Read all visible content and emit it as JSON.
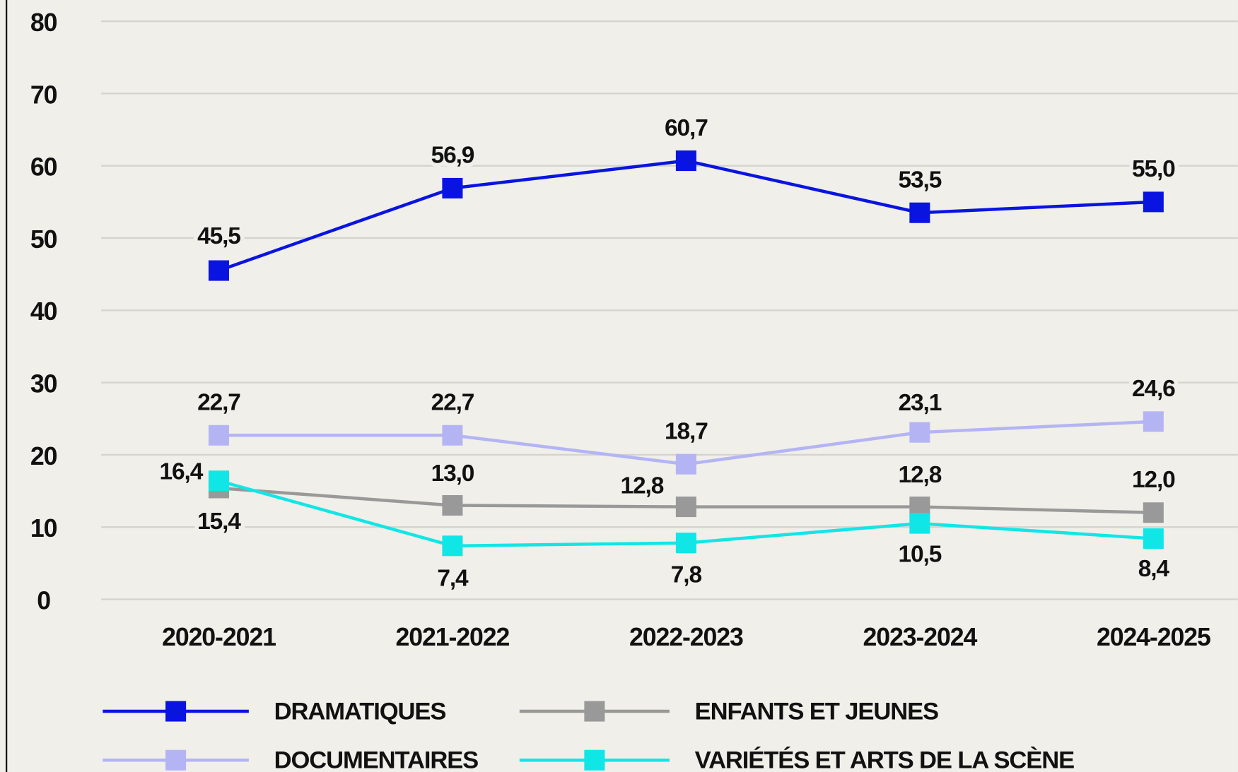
{
  "chart_data": {
    "type": "line",
    "categories": [
      "2020-2021",
      "2021-2022",
      "2022-2023",
      "2023-2024",
      "2024-2025"
    ],
    "series": [
      {
        "name": "DRAMATIQUES",
        "color": "#0a14e0",
        "values": [
          45.5,
          56.9,
          60.7,
          53.5,
          55.0
        ],
        "value_labels": [
          "45,5",
          "56,9",
          "60,7",
          "53,5",
          "55,0"
        ]
      },
      {
        "name": "ENFANTS ET JEUNES",
        "color": "#999999",
        "values": [
          15.4,
          13.0,
          12.8,
          12.8,
          12.0
        ],
        "value_labels": [
          "15,4",
          "13,0",
          "12,8",
          "12,8",
          "12,0"
        ]
      },
      {
        "name": "DOCUMENTAIRES",
        "color": "#b4b4f5",
        "values": [
          22.7,
          22.7,
          18.7,
          23.1,
          24.6
        ],
        "value_labels": [
          "22,7",
          "22,7",
          "18,7",
          "23,1",
          "24,6"
        ]
      },
      {
        "name": "VARIÉTÉS ET ARTS DE LA SCÈNE",
        "color": "#11e6e6",
        "values": [
          16.4,
          7.4,
          7.8,
          10.5,
          8.4
        ],
        "value_labels": [
          "16,4",
          "7,4",
          "7,8",
          "10,5",
          "8,4"
        ]
      }
    ],
    "ylim": [
      0,
      80
    ],
    "yticks": [
      0,
      10,
      20,
      30,
      40,
      50,
      60,
      70,
      80
    ],
    "grid": true
  }
}
